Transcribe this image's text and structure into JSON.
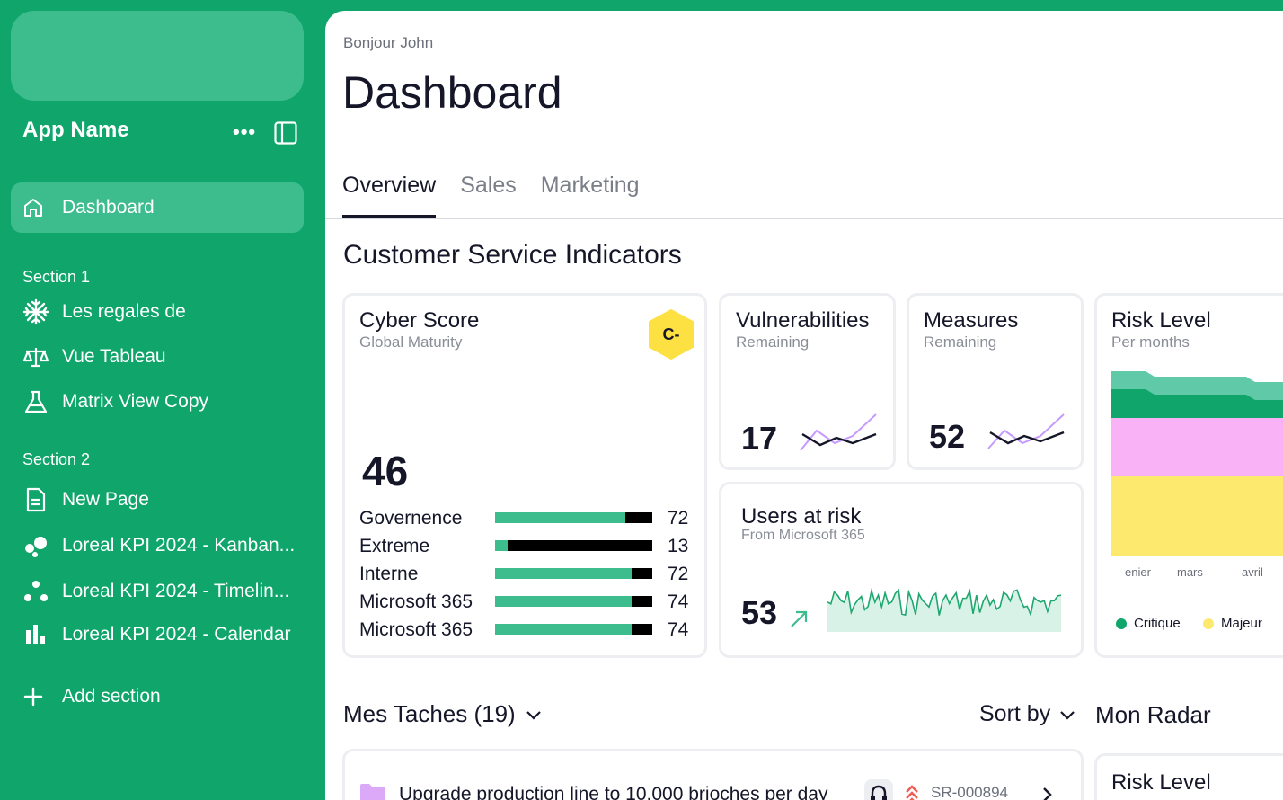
{
  "app": {
    "name": "App Name"
  },
  "sidebar": {
    "active_item": "Dashboard",
    "section1_label": "Section 1",
    "section1_items": [
      {
        "label": "Les regales de",
        "icon": "snowflake-icon"
      },
      {
        "label": "Vue Tableau",
        "icon": "balance-scale-icon"
      },
      {
        "label": "Matrix View Copy",
        "icon": "flask-icon"
      }
    ],
    "section2_label": "Section 2",
    "section2_items": [
      {
        "label": "New Page",
        "icon": "document-icon"
      },
      {
        "label": "Loreal KPI 2024 - Kanban...",
        "icon": "bubbles-icon"
      },
      {
        "label": "Loreal KPI 2024 - Timelin...",
        "icon": "dots-icon"
      },
      {
        "label": "Loreal KPI 2024 - Calendar",
        "icon": "bar-chart-icon"
      }
    ],
    "add_section": "Add section"
  },
  "header": {
    "greeting": "Bonjour John",
    "title": "Dashboard",
    "tabs": [
      "Overview",
      "Sales",
      "Marketing"
    ]
  },
  "indicators": {
    "title": "Customer Service Indicators",
    "cyber": {
      "title": "Cyber Score",
      "subtitle": "Global Maturity",
      "grade": "C-",
      "score": "46",
      "rows": [
        {
          "label": "Governence",
          "value": "72",
          "fill": 0.83
        },
        {
          "label": "Extreme",
          "value": "13",
          "fill": 0.08
        },
        {
          "label": "Interne",
          "value": "72",
          "fill": 0.87
        },
        {
          "label": "Microsoft 365",
          "value": "74",
          "fill": 0.87
        },
        {
          "label": "Microsoft 365",
          "value": "74",
          "fill": 0.87
        }
      ]
    },
    "vulnerabilities": {
      "title": "Vulnerabilities",
      "subtitle": "Remaining",
      "value": "17"
    },
    "measures": {
      "title": "Measures",
      "subtitle": "Remaining",
      "value": "52"
    },
    "users": {
      "title": "Users at risk",
      "subtitle": "From Microsoft 365",
      "value": "53"
    },
    "risk": {
      "title": "Risk Level",
      "subtitle": "Per months",
      "months": [
        "enier",
        "mars",
        "avril"
      ],
      "legend": [
        {
          "label": "Critique",
          "color": "#0fa56b"
        },
        {
          "label": "Majeur",
          "color": "#fde96e"
        }
      ]
    }
  },
  "tasks": {
    "title": "Mes Taches (19)",
    "sort_label": "Sort by",
    "first_task": "Upgrade production line to 10,000 brioches per day",
    "first_task_id": "SR-000894"
  },
  "radar": {
    "title": "Mon Radar",
    "card_title": "Risk Level"
  },
  "colors": {
    "brand": "#0fa56b",
    "brand_light": "#3dbc8d",
    "accent": "#c59bff"
  }
}
